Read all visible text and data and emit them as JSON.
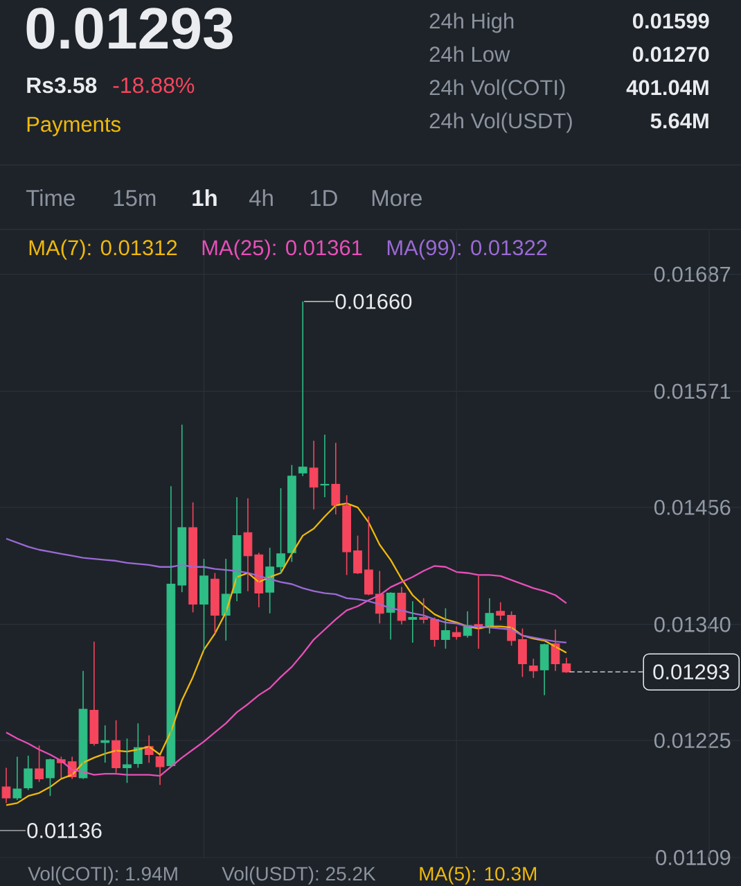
{
  "chart_data": {
    "type": "candlestick",
    "title": "0.01293",
    "categories": [
      null,
      null,
      null,
      null,
      null,
      null,
      null,
      null,
      null,
      null,
      null,
      null,
      null,
      null,
      null,
      null,
      null,
      null,
      null,
      null,
      null,
      null,
      null,
      null,
      null,
      null,
      null,
      null,
      null,
      null,
      null,
      null,
      null,
      null,
      null,
      null,
      null,
      null,
      null,
      null,
      null,
      null,
      null,
      null,
      null,
      null,
      null,
      null,
      null,
      null,
      null,
      null
    ],
    "ohlc": [
      [
        0.01179,
        0.01198,
        0.01163,
        0.01168
      ],
      [
        0.01168,
        0.01209,
        0.01166,
        0.01177
      ],
      [
        0.01178,
        0.0121,
        0.01176,
        0.01197
      ],
      [
        0.01197,
        0.0122,
        0.01184,
        0.01187
      ],
      [
        0.01188,
        0.01207,
        0.0117,
        0.01206
      ],
      [
        0.01206,
        0.01209,
        0.01188,
        0.01203
      ],
      [
        0.01204,
        0.01209,
        0.01187,
        0.01189
      ],
      [
        0.01188,
        0.01294,
        0.01187,
        0.01256
      ],
      [
        0.01255,
        0.01323,
        0.0122,
        0.01222
      ],
      [
        0.01223,
        0.0124,
        0.01203,
        0.01225
      ],
      [
        0.01225,
        0.01245,
        0.01193,
        0.01198
      ],
      [
        0.01198,
        0.01227,
        0.01183,
        0.01201
      ],
      [
        0.01202,
        0.01242,
        0.01198,
        0.01218
      ],
      [
        0.01219,
        0.0123,
        0.01203,
        0.01211
      ],
      [
        0.01209,
        0.0121,
        0.01181,
        0.01199
      ],
      [
        0.012,
        0.01477,
        0.01199,
        0.0138
      ],
      [
        0.01379,
        0.01538,
        0.01372,
        0.01436
      ],
      [
        0.01436,
        0.01461,
        0.01352,
        0.0136
      ],
      [
        0.0136,
        0.01405,
        0.01314,
        0.01388
      ],
      [
        0.01385,
        0.01391,
        0.01331,
        0.01349
      ],
      [
        0.01349,
        0.01405,
        0.01324,
        0.0137
      ],
      [
        0.01371,
        0.01466,
        0.01363,
        0.01428
      ],
      [
        0.01431,
        0.01465,
        0.01373,
        0.01408
      ],
      [
        0.01409,
        0.01411,
        0.01357,
        0.01371
      ],
      [
        0.01372,
        0.01416,
        0.01351,
        0.01397
      ],
      [
        0.01397,
        0.01475,
        0.01391,
        0.0141
      ],
      [
        0.01411,
        0.01498,
        0.01402,
        0.01487
      ],
      [
        0.0149,
        0.0166,
        0.01487,
        0.01496
      ],
      [
        0.01495,
        0.01522,
        0.01454,
        0.01476
      ],
      [
        0.01478,
        0.01528,
        0.01466,
        0.01479
      ],
      [
        0.01479,
        0.0152,
        0.01449,
        0.01458
      ],
      [
        0.01458,
        0.01468,
        0.01389,
        0.01412
      ],
      [
        0.01413,
        0.01428,
        0.0139,
        0.01391
      ],
      [
        0.01394,
        0.01447,
        0.01369,
        0.0137
      ],
      [
        0.0137,
        0.01393,
        0.01341,
        0.01351
      ],
      [
        0.01352,
        0.01372,
        0.01325,
        0.01371
      ],
      [
        0.01371,
        0.01377,
        0.0134,
        0.01344
      ],
      [
        0.01345,
        0.01363,
        0.01322,
        0.01347
      ],
      [
        0.01347,
        0.01366,
        0.01341,
        0.01345
      ],
      [
        0.01345,
        0.01347,
        0.01318,
        0.01325
      ],
      [
        0.01325,
        0.01356,
        0.01316,
        0.01334
      ],
      [
        0.01332,
        0.01338,
        0.01325,
        0.01328
      ],
      [
        0.01329,
        0.01353,
        0.01327,
        0.01339
      ],
      [
        0.0134,
        0.01388,
        0.01316,
        0.01338
      ],
      [
        0.01338,
        0.01366,
        0.01331,
        0.01351
      ],
      [
        0.01353,
        0.01362,
        0.01344,
        0.01349
      ],
      [
        0.01349,
        0.01353,
        0.01319,
        0.01324
      ],
      [
        0.01325,
        0.01336,
        0.01288,
        0.01301
      ],
      [
        0.01299,
        0.01306,
        0.01287,
        0.01294
      ],
      [
        0.01295,
        0.01321,
        0.0127,
        0.0132
      ],
      [
        0.01321,
        0.01335,
        0.01294,
        0.01301
      ],
      [
        0.01301,
        0.01307,
        0.01292,
        0.01293
      ]
    ],
    "colors": [
      "#f6465d",
      "#2ebd85",
      "#2ebd85",
      "#f6465d",
      "#2ebd85",
      "#f6465d",
      "#f6465d",
      "#2ebd85",
      "#f6465d",
      "#2ebd85",
      "#f6465d",
      "#2ebd85",
      "#2ebd85",
      "#f6465d",
      "#f6465d",
      "#2ebd85",
      "#2ebd85",
      "#f6465d",
      "#2ebd85",
      "#f6465d",
      "#2ebd85",
      "#2ebd85",
      "#f6465d",
      "#f6465d",
      "#2ebd85",
      "#2ebd85",
      "#2ebd85",
      "#2ebd85",
      "#f6465d",
      "#2ebd85",
      "#f6465d",
      "#f6465d",
      "#f6465d",
      "#f6465d",
      "#f6465d",
      "#2ebd85",
      "#f6465d",
      "#2ebd85",
      "#f6465d",
      "#f6465d",
      "#2ebd85",
      "#f6465d",
      "#2ebd85",
      "#f6465d",
      "#2ebd85",
      "#f6465d",
      "#f6465d",
      "#f6465d",
      "#f6465d",
      "#2ebd85",
      "#f6465d",
      "#f6465d"
    ],
    "series": [
      {
        "type": "line",
        "name": "MA(7): 0.01312",
        "color": "#f0b90b",
        "values": [
          0.01161,
          0.01163,
          0.0117,
          0.01173,
          0.01179,
          0.01187,
          0.01191,
          0.01203,
          0.01208,
          0.01212,
          0.01215,
          0.01214,
          0.01216,
          0.01219,
          0.01211,
          0.01234,
          0.01265,
          0.01288,
          0.01315,
          0.01331,
          0.01352,
          0.01387,
          0.01391,
          0.01382,
          0.01387,
          0.01391,
          0.0141,
          0.01428,
          0.01435,
          0.01447,
          0.01458,
          0.0146,
          0.01456,
          0.01441,
          0.01419,
          0.01404,
          0.01385,
          0.01369,
          0.01359,
          0.0135,
          0.01345,
          0.01342,
          0.01338,
          0.01336,
          0.01338,
          0.01338,
          0.01337,
          0.01329,
          0.01326,
          0.01324,
          0.01318,
          0.01312
        ]
      },
      {
        "type": "line",
        "name": "MA(25): 0.01361",
        "color": "#e84fb8",
        "values": [
          0.01233,
          0.01227,
          0.01222,
          0.01216,
          0.01211,
          0.01205,
          0.01196,
          0.01194,
          0.01191,
          0.01192,
          0.01192,
          0.01191,
          0.01191,
          0.01191,
          0.0119,
          0.01199,
          0.01208,
          0.01216,
          0.01224,
          0.01233,
          0.01242,
          0.01253,
          0.01261,
          0.0127,
          0.01277,
          0.01288,
          0.01298,
          0.01311,
          0.01325,
          0.01335,
          0.01345,
          0.01354,
          0.01358,
          0.01364,
          0.01369,
          0.01377,
          0.01382,
          0.01387,
          0.01393,
          0.01398,
          0.01397,
          0.01392,
          0.01391,
          0.01389,
          0.01389,
          0.01388,
          0.01384,
          0.0138,
          0.01376,
          0.01373,
          0.01369,
          0.01361
        ]
      },
      {
        "type": "line",
        "name": "MA(99): 0.01322",
        "color": "#9b6ad6",
        "values": [
          0.01425,
          0.01421,
          0.01417,
          0.01414,
          0.01412,
          0.0141,
          0.01408,
          0.01406,
          0.01405,
          0.01404,
          0.01403,
          0.01401,
          0.014,
          0.01399,
          0.01397,
          0.01397,
          0.01399,
          0.01397,
          0.01397,
          0.01395,
          0.01394,
          0.01393,
          0.01391,
          0.01388,
          0.01385,
          0.01382,
          0.0138,
          0.01376,
          0.01373,
          0.01371,
          0.0137,
          0.01366,
          0.01365,
          0.01363,
          0.0136,
          0.01356,
          0.01354,
          0.01351,
          0.01349,
          0.01345,
          0.01342,
          0.01341,
          0.01338,
          0.01338,
          0.01337,
          0.01336,
          0.01335,
          0.01329,
          0.01327,
          0.01325,
          0.01323,
          0.01322
        ]
      }
    ],
    "ylim": [
      0.01109,
      0.0173
    ],
    "yticks": [
      0.01687,
      0.01571,
      0.01456,
      {
        "value": 0.0134,
        "label": "0.01340"
      },
      0.01225,
      0.01109
    ],
    "grid": true,
    "legend": "top",
    "tick_labels": "y",
    "ref_lines": [
      {
        "axis": "y",
        "value": 0.01293,
        "label": "0.01293",
        "color": "#eaecef",
        "line_style": "dashed"
      }
    ],
    "annotations": [
      "Rs3.58",
      "-18.88%",
      "Payments",
      "24h High",
      "0.01599",
      "24h Low",
      "0.01270",
      "24h Vol(COTI)",
      "401.04M",
      "24h Vol(USDT)",
      "5.64M",
      "Time",
      "15m",
      "1h",
      "4h",
      "1D",
      "More",
      "Vol(COTI): 1.94M",
      "Vol(USDT): 25.2K",
      "MA(5): 10.3M",
      "0.01660",
      "0.01136"
    ]
  }
}
